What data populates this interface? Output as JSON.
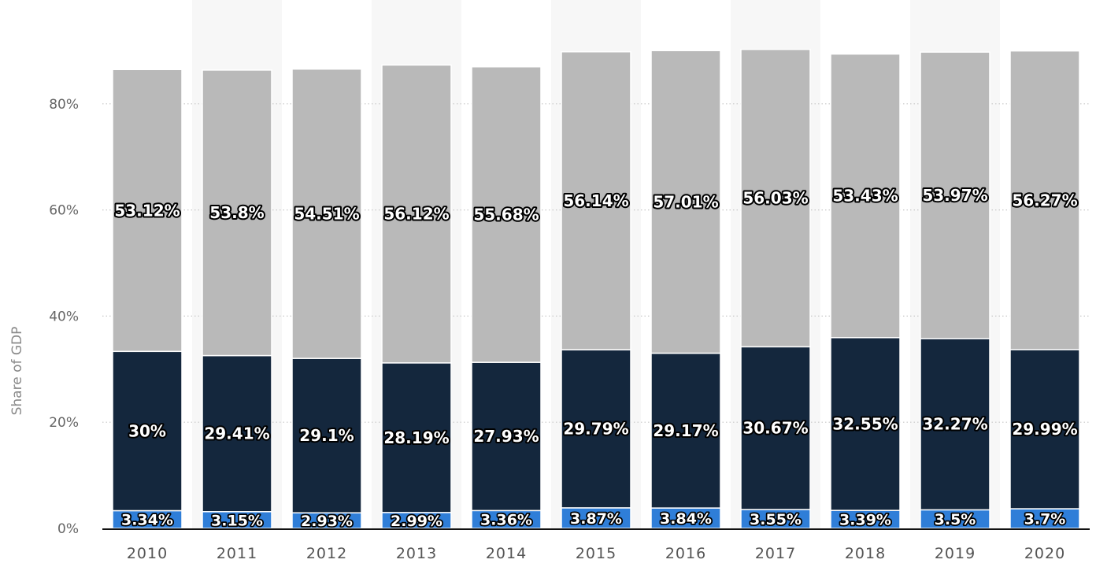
{
  "chart_data": {
    "type": "bar",
    "stacked": true,
    "categories": [
      "2010",
      "2011",
      "2012",
      "2013",
      "2014",
      "2015",
      "2016",
      "2017",
      "2018",
      "2019",
      "2020"
    ],
    "series": [
      {
        "color": "#2f7ed8",
        "values": [
          3.34,
          3.15,
          2.93,
          2.99,
          3.36,
          3.87,
          3.84,
          3.55,
          3.39,
          3.5,
          3.7
        ],
        "labels": [
          "3.34%",
          "3.15%",
          "2.93%",
          "2.99%",
          "3.36%",
          "3.87%",
          "3.84%",
          "3.55%",
          "3.39%",
          "3.5%",
          "3.7%"
        ]
      },
      {
        "color": "#14273d",
        "values": [
          30,
          29.41,
          29.1,
          28.19,
          27.93,
          29.79,
          29.17,
          30.67,
          32.55,
          32.27,
          29.99
        ],
        "labels": [
          "30%",
          "29.41%",
          "29.1%",
          "28.19%",
          "27.93%",
          "29.79%",
          "29.17%",
          "30.67%",
          "32.55%",
          "32.27%",
          "29.99%"
        ]
      },
      {
        "color": "#b9b9b9",
        "values": [
          53.12,
          53.8,
          54.51,
          56.12,
          55.68,
          56.14,
          57.01,
          56.03,
          53.43,
          53.97,
          56.27
        ],
        "labels": [
          "53.12%",
          "53.8%",
          "54.51%",
          "56.12%",
          "55.68%",
          "56.14%",
          "57.01%",
          "56.03%",
          "53.43%",
          "53.97%",
          "56.27%"
        ]
      }
    ],
    "ylabel": "Share of GDP",
    "ylim": [
      0,
      90
    ],
    "yticks": [
      0,
      20,
      40,
      60,
      80
    ],
    "ytick_labels": [
      "0%",
      "20%",
      "40%",
      "60%",
      "80%"
    ],
    "grid": true,
    "alternating_column_shading": true
  }
}
